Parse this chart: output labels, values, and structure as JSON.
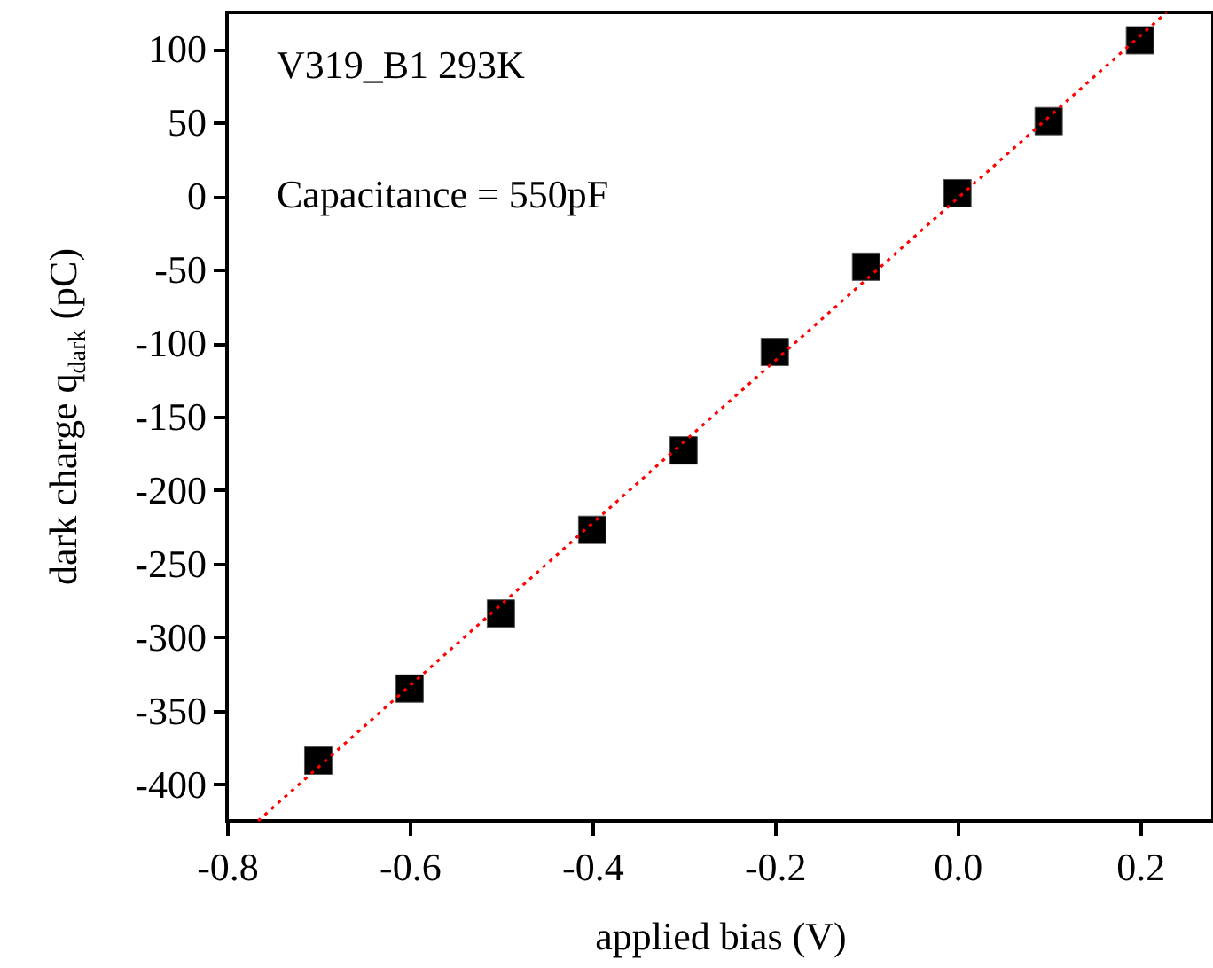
{
  "chart_data": {
    "type": "scatter",
    "xlabel": "applied bias (V)",
    "ylabel": "dark charge q$_{dark}$ (pC)",
    "annotations": [
      "V319_B1 293K",
      "Capacitance = 550pF"
    ],
    "x": [
      -0.7,
      -0.6,
      -0.5,
      -0.4,
      -0.3,
      -0.2,
      -0.1,
      0.0,
      0.1,
      0.2
    ],
    "series": [
      {
        "color": "#000000",
        "marker": "square",
        "values": [
          -384,
          -335,
          -284,
          -227,
          -173,
          -106,
          -48,
          2,
          51,
          106
        ]
      },
      {
        "type": "line",
        "color": "#ff0000",
        "line_style": "dotted",
        "x": [
          -0.766,
          0.229
        ],
        "values": [
          -425,
          125
        ]
      }
    ],
    "xlim": [
      -0.8,
      0.28
    ],
    "ylim": [
      -425,
      125
    ],
    "xticks": [
      -0.8,
      -0.6,
      -0.4,
      -0.2,
      {
        "value": 0,
        "label": "0.0"
      },
      0.2
    ],
    "yticks": [
      -400,
      -350,
      -300,
      -250,
      -200,
      -150,
      -100,
      -50,
      0,
      50,
      100
    ],
    "grid": false
  }
}
